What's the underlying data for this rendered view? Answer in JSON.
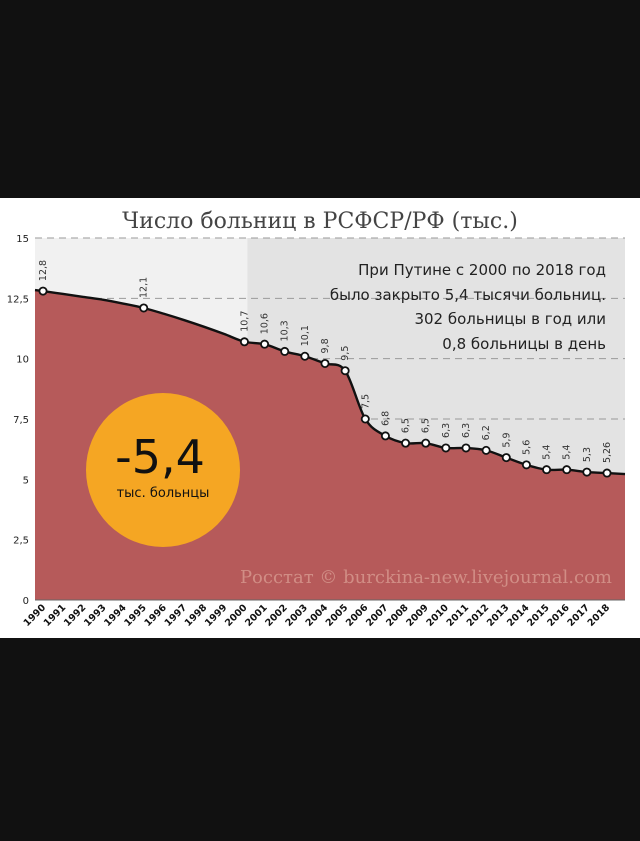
{
  "chart_data": {
    "type": "area",
    "title": "Число больниц в РСФСР/РФ (тыс.)",
    "xlabel": "",
    "ylabel": "",
    "x": [
      "1990",
      "1991",
      "1992",
      "1993",
      "1994",
      "1995",
      "1996",
      "1997",
      "1998",
      "1999",
      "2000",
      "2001",
      "2002",
      "2003",
      "2004",
      "2005",
      "2006",
      "2007",
      "2008",
      "2009",
      "2010",
      "2011",
      "2012",
      "2013",
      "2014",
      "2015",
      "2016",
      "2017",
      "2018"
    ],
    "yticks": [
      "0",
      "2,5",
      "5",
      "7,5",
      "10",
      "12,5",
      "15"
    ],
    "ylim": [
      0,
      15
    ],
    "grid": true,
    "series": [
      {
        "values": [
          12.8,
          12.68,
          12.56,
          12.44,
          12.28,
          12.1,
          11.86,
          11.6,
          11.32,
          11.02,
          10.7,
          10.6,
          10.3,
          10.1,
          9.8,
          9.5,
          7.5,
          6.8,
          6.5,
          6.5,
          6.3,
          6.3,
          6.2,
          5.9,
          5.6,
          5.4,
          5.4,
          5.3,
          5.26
        ],
        "labeled_points": [
          {
            "x": "1990",
            "label": "12,8"
          },
          {
            "x": "1995",
            "label": "12,1"
          },
          {
            "x": "2000",
            "label": "10,7"
          },
          {
            "x": "2001",
            "label": "10,6"
          },
          {
            "x": "2002",
            "label": "10,3"
          },
          {
            "x": "2003",
            "label": "10,1"
          },
          {
            "x": "2004",
            "label": "9,8"
          },
          {
            "x": "2005",
            "label": "9,5"
          },
          {
            "x": "2006",
            "label": "7,5"
          },
          {
            "x": "2007",
            "label": "6,8"
          },
          {
            "x": "2008",
            "label": "6,5"
          },
          {
            "x": "2009",
            "label": "6,5"
          },
          {
            "x": "2010",
            "label": "6,3"
          },
          {
            "x": "2011",
            "label": "6,3"
          },
          {
            "x": "2012",
            "label": "6,2"
          },
          {
            "x": "2013",
            "label": "5,9"
          },
          {
            "x": "2014",
            "label": "5,6"
          },
          {
            "x": "2015",
            "label": "5,4"
          },
          {
            "x": "2016",
            "label": "5,4"
          },
          {
            "x": "2017",
            "label": "5,3"
          },
          {
            "x": "2018",
            "label": "5,26"
          }
        ]
      }
    ],
    "highlight_region": {
      "from": "2000",
      "to": "2018"
    },
    "annotation_lines": [
      "При Путине с 2000 по 2018 год",
      "было закрыто 5,4 тысячи больниц.",
      "302 больницы в год или",
      "0,8 больницы в день"
    ],
    "badge": {
      "value": "-5,4",
      "caption": "тыс. больнцы"
    },
    "watermark": "Росстат © burckina-new.livejournal.com",
    "colors": {
      "area": "#b65a5a",
      "line": "#111111",
      "highlight_bg": "#e3e3e3",
      "plot_bg": "#f1f1f1",
      "badge": "#f5a623",
      "grid": "#9a9a9a",
      "frame": "#111111"
    }
  }
}
